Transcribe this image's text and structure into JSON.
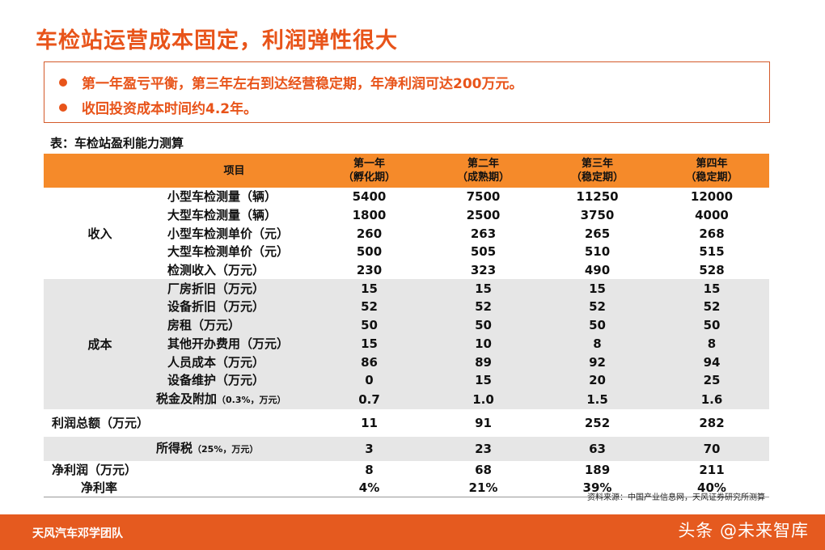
{
  "title": "车检站运营成本固定，利润弹性很大",
  "summary": [
    "第一年盈亏平衡，第三年左右到达经营稳定期，年净利润可达200万元。",
    "收回投资成本时间约4.2年。"
  ],
  "table_caption": "表：车检站盈利能力测算",
  "table": {
    "headers": {
      "item": "项目",
      "years": [
        {
          "line1": "第一年",
          "line2": "（孵化期）"
        },
        {
          "line1": "第二年",
          "line2": "（成熟期）"
        },
        {
          "line1": "第三年",
          "line2": "（稳定期）"
        },
        {
          "line1": "第四年",
          "line2": "（稳定期）"
        }
      ]
    },
    "income": {
      "category": "收入",
      "rows": [
        {
          "label": "小型车检测量（辆）",
          "values": [
            "5400",
            "7500",
            "11250",
            "12000"
          ]
        },
        {
          "label": "大型车检测量（辆）",
          "values": [
            "1800",
            "2500",
            "3750",
            "4000"
          ]
        },
        {
          "label": "小型车检测单价（元）",
          "values": [
            "260",
            "263",
            "265",
            "268"
          ]
        },
        {
          "label": "大型车检测单价（元）",
          "values": [
            "500",
            "505",
            "510",
            "515"
          ]
        },
        {
          "label": "检测收入（万元）",
          "values": [
            "230",
            "323",
            "490",
            "528"
          ]
        }
      ]
    },
    "cost": {
      "category": "成本",
      "rows": [
        {
          "label": "厂房折旧（万元）",
          "values": [
            "15",
            "15",
            "15",
            "15"
          ]
        },
        {
          "label": "设备折旧（万元）",
          "values": [
            "52",
            "52",
            "52",
            "52"
          ]
        },
        {
          "label": "房租（万元）",
          "values": [
            "50",
            "50",
            "50",
            "50"
          ]
        },
        {
          "label": "其他开办费用（万元）",
          "values": [
            "15",
            "10",
            "8",
            "8"
          ]
        },
        {
          "label": "人员成本（万元）",
          "values": [
            "86",
            "89",
            "92",
            "94"
          ]
        },
        {
          "label": "设备维护（万元）",
          "values": [
            "0",
            "15",
            "20",
            "25"
          ]
        }
      ]
    },
    "tax_surcharge": {
      "label_main": "税金及附加",
      "label_small": "（0.3%，万元）",
      "values": [
        "0.7",
        "1.0",
        "1.5",
        "1.6"
      ]
    },
    "total_profit": {
      "label": "利润总额（万元）",
      "values": [
        "11",
        "91",
        "252",
        "282"
      ]
    },
    "income_tax": {
      "label_main": "所得税",
      "label_small": "（25%，万元）",
      "values": [
        "3",
        "23",
        "63",
        "70"
      ]
    },
    "net_profit": {
      "label": "净利润（万元）",
      "values": [
        "8",
        "68",
        "189",
        "211"
      ]
    },
    "net_margin": {
      "label": "净利率",
      "values": [
        "4%",
        "21%",
        "39%",
        "40%"
      ]
    }
  },
  "source": "资料来源：中国产业信息网，天风证券研究所测算",
  "footer": {
    "team": "天风汽车邓学团队",
    "watermark": "头条 @未来智库"
  },
  "colors": {
    "accent": "#e8541a",
    "header_bg": "#f58a2a",
    "band_gray": "#e6e6e6",
    "footer_bg": "#e55a1f"
  }
}
